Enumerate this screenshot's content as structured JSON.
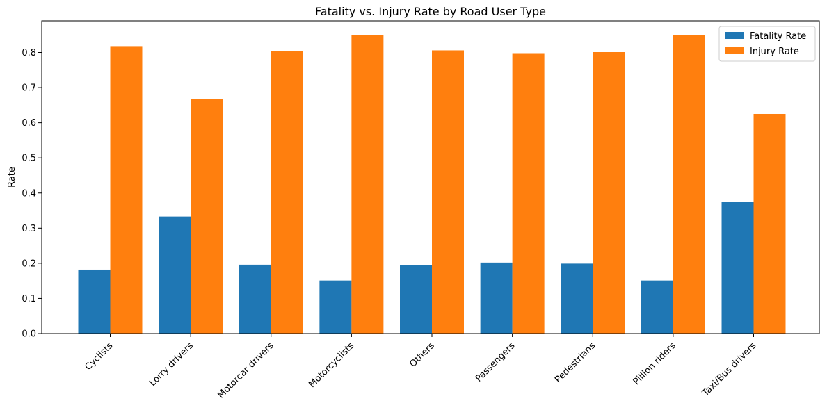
{
  "chart_data": {
    "type": "bar",
    "title": "Fatality vs. Injury Rate by Road User Type",
    "xlabel": "",
    "ylabel": "Rate",
    "categories": [
      "Cyclists",
      "Lorry drivers",
      "Motorcar drivers",
      "Motorcyclists",
      "Others",
      "Passengers",
      "Pedestrians",
      "Pillion riders",
      "Taxi/Bus drivers"
    ],
    "series": [
      {
        "name": "Fatality Rate",
        "color": "#1f77b4",
        "values": [
          0.182,
          0.333,
          0.196,
          0.151,
          0.194,
          0.202,
          0.199,
          0.151,
          0.375
        ]
      },
      {
        "name": "Injury Rate",
        "color": "#ff7f0e",
        "values": [
          0.818,
          0.667,
          0.804,
          0.849,
          0.806,
          0.798,
          0.801,
          0.849,
          0.625
        ]
      }
    ],
    "ylim": [
      0,
      0.89
    ],
    "yticks": [
      "0.0",
      "0.1",
      "0.2",
      "0.3",
      "0.4",
      "0.5",
      "0.6",
      "0.7",
      "0.8"
    ],
    "grid": false,
    "legend": "top-right"
  }
}
